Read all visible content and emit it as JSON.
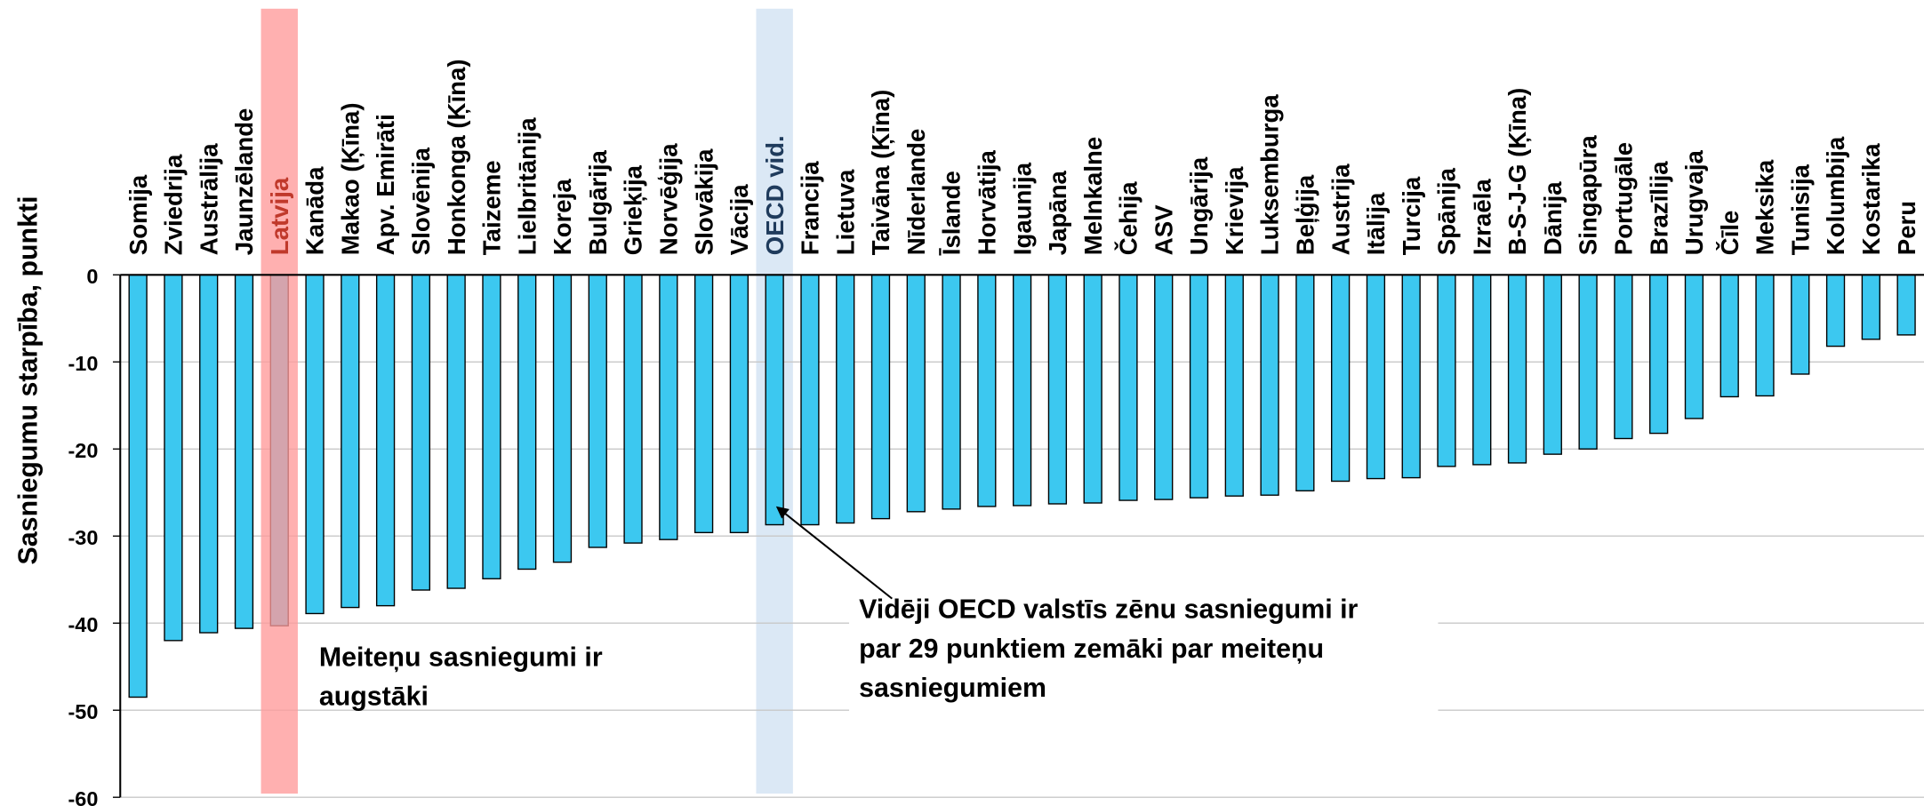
{
  "chart_data": {
    "type": "bar",
    "y_axis_label": "Sasniegumu starpība, punkti",
    "categories": [
      "Somija",
      "Zviedrija",
      "Austrālija",
      "Jaunzēlande",
      "Latvija",
      "Kanāda",
      "Makao (Ķīna)",
      "Apv. Emirāti",
      "Slovēnija",
      "Honkonga (Ķīna)",
      "Taizeme",
      "Lielbritānija",
      "Koreja",
      "Bulgārija",
      "Grieķija",
      "Norvēģija",
      "Slovākija",
      "Vācija",
      "OECD vid.",
      "Francija",
      "Lietuva",
      "Taivāna (Ķīna)",
      "Nīderlande",
      "Īslande",
      "Horvātija",
      "Igaunija",
      "Japāna",
      "Melnkalne",
      "Čehija",
      "ASV",
      "Ungārija",
      "Krievija",
      "Luksemburga",
      "Beļģija",
      "Austrija",
      "Itālija",
      "Turcija",
      "Spānija",
      "Izraēla",
      "B-S-J-G (Ķīna)",
      "Dānija",
      "Singapūra",
      "Portugāle",
      "Brazīlija",
      "Urugvaja",
      "Čīle",
      "Meksika",
      "Tunisija",
      "Kolumbija",
      "Kostarika",
      "Peru"
    ],
    "values": [
      -48.5,
      -42,
      -41.1,
      -40.6,
      -40.3,
      -38.9,
      -38.2,
      -38,
      -36.2,
      -36,
      -34.9,
      -33.8,
      -33,
      -31.3,
      -30.8,
      -30.4,
      -29.6,
      -29.6,
      -28.7,
      -28.7,
      -28.5,
      -28,
      -27.2,
      -26.9,
      -26.6,
      -26.5,
      -26.3,
      -26.2,
      -25.9,
      -25.8,
      -25.6,
      -25.4,
      -25.3,
      -24.8,
      -23.7,
      -23.4,
      -23.3,
      -22,
      -21.8,
      -21.6,
      -20.6,
      -20,
      -18.8,
      -18.2,
      -16.5,
      -14,
      -13.9,
      -11.4,
      -8.2,
      -7.4,
      -6.9
    ],
    "color": "#3cc8f0",
    "highlights": [
      {
        "index": 4,
        "color": "#ff9a9a",
        "label_color": "#c0392b",
        "on_top": true
      },
      {
        "index": 18,
        "color": "#dbe8f5",
        "label_color": "#1f3b5c",
        "on_top": false
      }
    ],
    "ylim": [
      -60,
      0
    ],
    "yticks": [
      0,
      -10,
      -20,
      -30,
      -40,
      -50,
      -60
    ],
    "grid": true,
    "annotations": [
      {
        "lines": [
          "Meiteņu sasniegumi ir",
          "augstāki"
        ]
      },
      {
        "lines": [
          "Vidēji OECD valstīs zēnu sasniegumi ir",
          "par 29 punktiem zemāki par meiteņu",
          "sasniegumiem"
        ]
      }
    ]
  }
}
